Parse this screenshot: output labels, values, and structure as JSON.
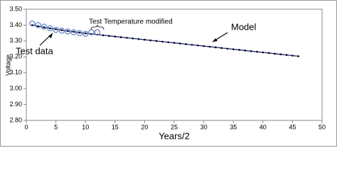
{
  "chart_data": {
    "type": "line",
    "x_label": "Years/2",
    "y_label": "Voltage",
    "xlim": [
      0,
      50
    ],
    "xticks": [
      0,
      5,
      10,
      15,
      20,
      25,
      30,
      35,
      40,
      45,
      50
    ],
    "ylim": [
      2.8,
      3.5
    ],
    "yticks": [
      {
        "value": 2.8,
        "label": "2.80"
      },
      {
        "value": 2.9,
        "label": "2.90"
      },
      {
        "value": 3.0,
        "label": "3.00"
      },
      {
        "value": 3.1,
        "label": "3.10"
      },
      {
        "value": 3.2,
        "label": "3.20"
      },
      {
        "value": 3.3,
        "label": "3.30"
      },
      {
        "value": 3.4,
        "label": "3.40"
      },
      {
        "value": 3.5,
        "label": "3.50"
      }
    ],
    "annotations": [
      "Test Temperature modified"
    ],
    "series": [
      {
        "name": "Model",
        "color": "#1a237e",
        "x": [
          1,
          2,
          3,
          4,
          5,
          6,
          7,
          8,
          9,
          10,
          11,
          12,
          13,
          14,
          15,
          16,
          17,
          18,
          19,
          20,
          21,
          22,
          23,
          24,
          25,
          26,
          27,
          28,
          29,
          30,
          31,
          32,
          33,
          34,
          35,
          36,
          37,
          38,
          39,
          40,
          41,
          42,
          43,
          44,
          45,
          46
        ],
        "values": [
          3.4,
          3.393,
          3.386,
          3.38,
          3.374,
          3.368,
          3.363,
          3.358,
          3.353,
          3.348,
          3.344,
          3.34,
          3.336,
          3.332,
          3.328,
          3.324,
          3.32,
          3.316,
          3.312,
          3.308,
          3.304,
          3.3,
          3.296,
          3.292,
          3.288,
          3.284,
          3.28,
          3.276,
          3.272,
          3.268,
          3.264,
          3.26,
          3.256,
          3.252,
          3.248,
          3.244,
          3.24,
          3.236,
          3.232,
          3.228,
          3.224,
          3.22,
          3.216,
          3.212,
          3.208,
          3.204
        ]
      },
      {
        "name": "Test data",
        "color": "#5b7fc7",
        "x": [
          1,
          2,
          3,
          4,
          5,
          6,
          7,
          8,
          9,
          10,
          11,
          12
        ],
        "values": [
          3.41,
          3.4,
          3.39,
          3.38,
          3.37,
          3.365,
          3.36,
          3.355,
          3.35,
          3.345,
          3.355,
          3.355
        ]
      }
    ]
  }
}
